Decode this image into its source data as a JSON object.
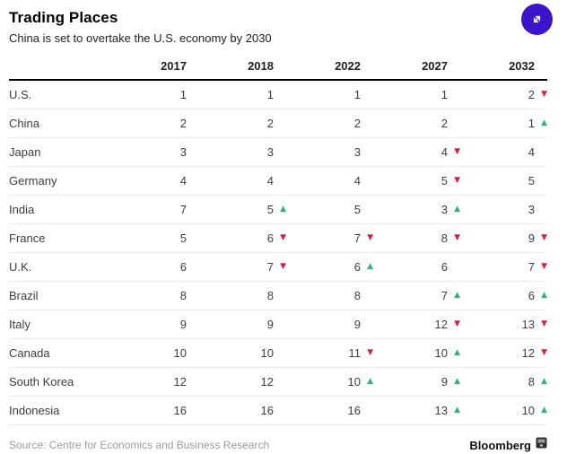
{
  "header": {
    "title": "Trading Places",
    "subtitle": "China is set to overtake the U.S. economy by 2030"
  },
  "chart_data": {
    "type": "table",
    "title": "Trading Places",
    "subtitle": "China is set to overtake the U.S. economy by 2030",
    "columns": [
      "2017",
      "2018",
      "2022",
      "2027",
      "2032"
    ],
    "rows": [
      {
        "country": "U.S.",
        "ranks": [
          1,
          1,
          1,
          1,
          2
        ],
        "changes": [
          null,
          null,
          null,
          null,
          "down"
        ]
      },
      {
        "country": "China",
        "ranks": [
          2,
          2,
          2,
          2,
          1
        ],
        "changes": [
          null,
          null,
          null,
          null,
          "up"
        ]
      },
      {
        "country": "Japan",
        "ranks": [
          3,
          3,
          3,
          4,
          4
        ],
        "changes": [
          null,
          null,
          null,
          "down",
          null
        ]
      },
      {
        "country": "Germany",
        "ranks": [
          4,
          4,
          4,
          5,
          5
        ],
        "changes": [
          null,
          null,
          null,
          "down",
          null
        ]
      },
      {
        "country": "India",
        "ranks": [
          7,
          5,
          5,
          3,
          3
        ],
        "changes": [
          null,
          "up",
          null,
          "up",
          null
        ]
      },
      {
        "country": "France",
        "ranks": [
          5,
          6,
          7,
          8,
          9
        ],
        "changes": [
          null,
          "down",
          "down",
          "down",
          "down"
        ]
      },
      {
        "country": "U.K.",
        "ranks": [
          6,
          7,
          6,
          6,
          7
        ],
        "changes": [
          null,
          "down",
          "up",
          null,
          "down"
        ]
      },
      {
        "country": "Brazil",
        "ranks": [
          8,
          8,
          8,
          7,
          6
        ],
        "changes": [
          null,
          null,
          null,
          "up",
          "up"
        ]
      },
      {
        "country": "Italy",
        "ranks": [
          9,
          9,
          9,
          12,
          13
        ],
        "changes": [
          null,
          null,
          null,
          "down",
          "down"
        ]
      },
      {
        "country": "Canada",
        "ranks": [
          10,
          10,
          11,
          10,
          12
        ],
        "changes": [
          null,
          null,
          "down",
          "up",
          "down"
        ]
      },
      {
        "country": "South Korea",
        "ranks": [
          12,
          12,
          10,
          9,
          8
        ],
        "changes": [
          null,
          null,
          "up",
          "up",
          "up"
        ]
      },
      {
        "country": "Indonesia",
        "ranks": [
          16,
          16,
          16,
          13,
          10
        ],
        "changes": [
          null,
          null,
          null,
          "up",
          "up"
        ]
      }
    ],
    "source": "Source: Centre for Economics and Business Research",
    "legend_position": "none",
    "grid": "horizontal-row-separators"
  },
  "icons": {
    "up": "▲",
    "down": "▼",
    "expand": "diagonal-expand-arrows",
    "brand": "terminal-icon"
  },
  "footer": {
    "source": "Source: Centre for Economics and Business Research",
    "brand": "Bloomberg"
  },
  "colors": {
    "up": "#2cb383",
    "down": "#d92339",
    "accent_button": "#3b14cc",
    "header_rule": "#000000",
    "row_rule": "#ebebeb"
  }
}
